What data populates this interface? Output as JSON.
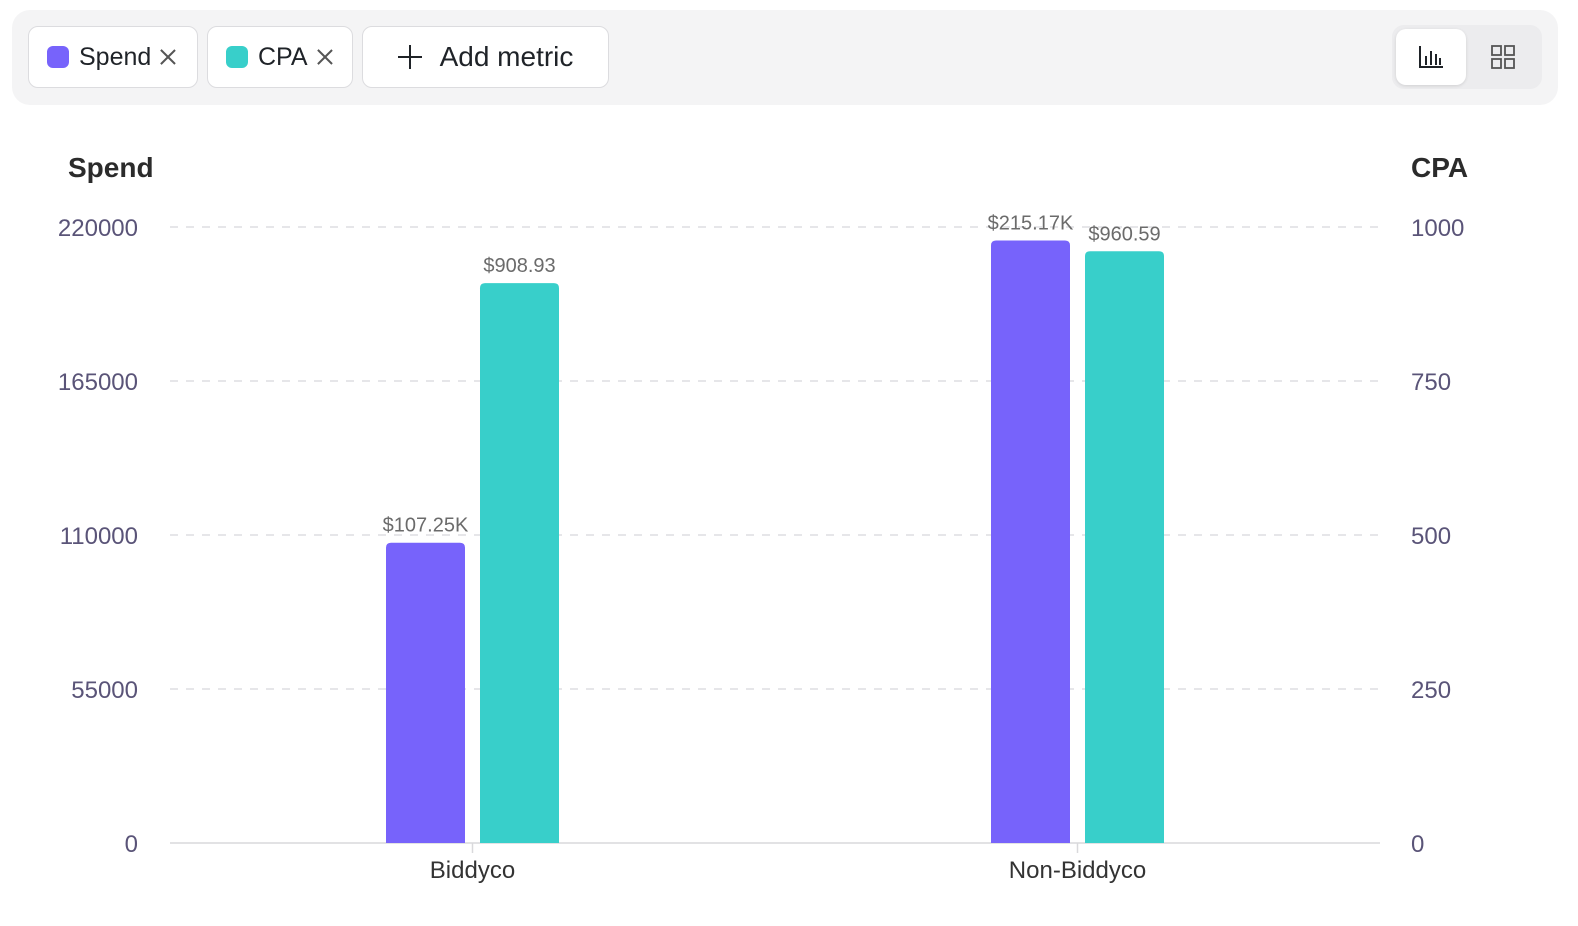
{
  "metrics": [
    {
      "label": "Spend",
      "color": "#7763fb",
      "close_icon": "close-icon"
    },
    {
      "label": "CPA",
      "color": "#38cfca",
      "close_icon": "close-icon"
    }
  ],
  "add_metric_label": "Add metric",
  "view_toggle": {
    "active": "bar-chart-icon",
    "inactive": "grid-icon"
  },
  "chart_data": {
    "type": "bar",
    "categories": [
      "Biddyco",
      "Non-Biddyco"
    ],
    "series": [
      {
        "name": "Spend",
        "axis": "left",
        "color": "#7763fb",
        "values": [
          107250,
          215170
        ],
        "labels": [
          "$107.25K",
          "$215.17K"
        ]
      },
      {
        "name": "CPA",
        "axis": "right",
        "color": "#38cfca",
        "values": [
          908.93,
          960.59
        ],
        "labels": [
          "$908.93",
          "$960.59"
        ]
      }
    ],
    "left_axis": {
      "label": "Spend",
      "ticks": [
        "0",
        "55000",
        "110000",
        "165000",
        "220000"
      ],
      "range": [
        0,
        220000
      ]
    },
    "right_axis": {
      "label": "CPA",
      "ticks": [
        "0",
        "250",
        "500",
        "750",
        "1000"
      ],
      "range": [
        0,
        1000
      ]
    },
    "grid": true
  }
}
